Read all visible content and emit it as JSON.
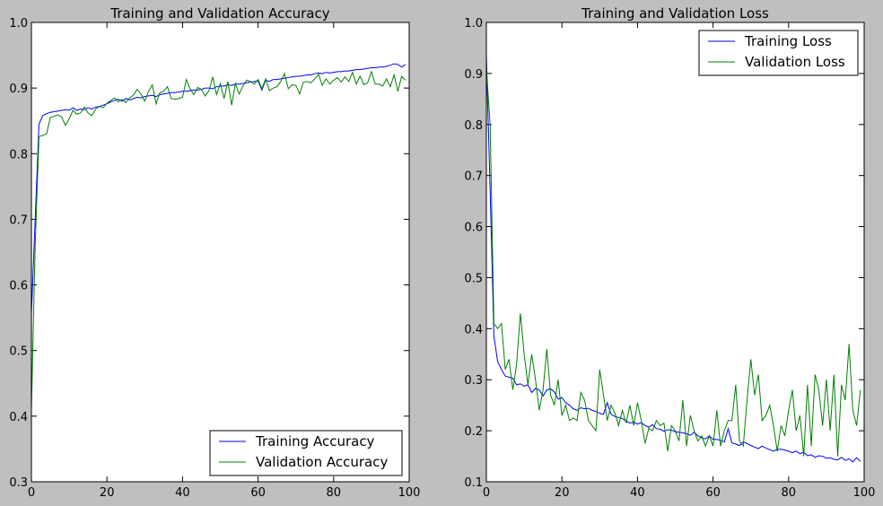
{
  "chart_data": [
    {
      "type": "line",
      "title": "Training and Validation Accuracy",
      "xlabel": "",
      "ylabel": "",
      "xlim": [
        0,
        100
      ],
      "ylim": [
        0.3,
        1.0
      ],
      "xticks": [
        "0",
        "20",
        "40",
        "60",
        "80",
        "100"
      ],
      "yticks": [
        "0.3",
        "0.4",
        "0.5",
        "0.6",
        "0.7",
        "0.8",
        "0.9",
        "1.0"
      ],
      "grid": false,
      "legend_position": "lower-right",
      "series": [
        {
          "name": "Training Accuracy",
          "color": "#0000ff",
          "x": [
            0,
            1,
            2,
            3,
            4,
            5,
            6,
            7,
            8,
            9,
            10,
            11,
            12,
            13,
            14,
            15,
            16,
            17,
            18,
            19,
            20,
            21,
            22,
            23,
            24,
            25,
            26,
            27,
            28,
            29,
            30,
            31,
            32,
            33,
            34,
            35,
            36,
            37,
            38,
            39,
            40,
            41,
            42,
            43,
            44,
            45,
            46,
            47,
            48,
            49,
            50,
            51,
            52,
            53,
            54,
            55,
            56,
            57,
            58,
            59,
            60,
            61,
            62,
            63,
            64,
            65,
            66,
            67,
            68,
            69,
            70,
            71,
            72,
            73,
            74,
            75,
            76,
            77,
            78,
            79,
            80,
            81,
            82,
            83,
            84,
            85,
            86,
            87,
            88,
            89,
            90,
            91,
            92,
            93,
            94,
            95,
            96,
            97,
            98,
            99
          ],
          "values": [
            0.555,
            0.7,
            0.845,
            0.858,
            0.861,
            0.863,
            0.864,
            0.865,
            0.866,
            0.867,
            0.866,
            0.87,
            0.866,
            0.868,
            0.867,
            0.87,
            0.868,
            0.871,
            0.872,
            0.874,
            0.876,
            0.879,
            0.881,
            0.883,
            0.88,
            0.884,
            0.882,
            0.884,
            0.886,
            0.885,
            0.887,
            0.888,
            0.889,
            0.887,
            0.89,
            0.891,
            0.892,
            0.893,
            0.893,
            0.894,
            0.895,
            0.895,
            0.896,
            0.897,
            0.897,
            0.898,
            0.9,
            0.9,
            0.899,
            0.902,
            0.903,
            0.903,
            0.905,
            0.904,
            0.906,
            0.906,
            0.907,
            0.908,
            0.909,
            0.91,
            0.911,
            0.897,
            0.912,
            0.91,
            0.913,
            0.913,
            0.914,
            0.915,
            0.916,
            0.917,
            0.918,
            0.918,
            0.919,
            0.92,
            0.92,
            0.922,
            0.923,
            0.922,
            0.924,
            0.923,
            0.924,
            0.925,
            0.925,
            0.926,
            0.926,
            0.927,
            0.928,
            0.928,
            0.929,
            0.93,
            0.931,
            0.931,
            0.932,
            0.932,
            0.933,
            0.935,
            0.937,
            0.936,
            0.932,
            0.936
          ]
        },
        {
          "name": "Validation Accuracy",
          "color": "#008000",
          "x": [
            0,
            1,
            2,
            3,
            4,
            5,
            6,
            7,
            8,
            9,
            10,
            11,
            12,
            13,
            14,
            15,
            16,
            17,
            18,
            19,
            20,
            21,
            22,
            23,
            24,
            25,
            26,
            27,
            28,
            29,
            30,
            31,
            32,
            33,
            34,
            35,
            36,
            37,
            38,
            39,
            40,
            41,
            42,
            43,
            44,
            45,
            46,
            47,
            48,
            49,
            50,
            51,
            52,
            53,
            54,
            55,
            56,
            57,
            58,
            59,
            60,
            61,
            62,
            63,
            64,
            65,
            66,
            67,
            68,
            69,
            70,
            71,
            72,
            73,
            74,
            75,
            76,
            77,
            78,
            79,
            80,
            81,
            82,
            83,
            84,
            85,
            86,
            87,
            88,
            89,
            90,
            91,
            92,
            93,
            94,
            95,
            96,
            97,
            98,
            99
          ],
          "values": [
            0.41,
            0.66,
            0.826,
            0.828,
            0.83,
            0.855,
            0.857,
            0.859,
            0.856,
            0.843,
            0.853,
            0.866,
            0.86,
            0.862,
            0.871,
            0.862,
            0.858,
            0.868,
            0.872,
            0.87,
            0.877,
            0.881,
            0.885,
            0.879,
            0.883,
            0.878,
            0.885,
            0.889,
            0.898,
            0.891,
            0.88,
            0.895,
            0.905,
            0.876,
            0.893,
            0.895,
            0.902,
            0.884,
            0.883,
            0.884,
            0.886,
            0.913,
            0.899,
            0.89,
            0.901,
            0.898,
            0.888,
            0.896,
            0.917,
            0.89,
            0.907,
            0.884,
            0.91,
            0.874,
            0.907,
            0.891,
            0.903,
            0.912,
            0.91,
            0.906,
            0.913,
            0.899,
            0.914,
            0.896,
            0.9,
            0.902,
            0.91,
            0.922,
            0.899,
            0.905,
            0.904,
            0.891,
            0.909,
            0.91,
            0.908,
            0.914,
            0.921,
            0.904,
            0.914,
            0.906,
            0.912,
            0.916,
            0.909,
            0.917,
            0.91,
            0.924,
            0.906,
            0.918,
            0.905,
            0.908,
            0.925,
            0.906,
            0.906,
            0.903,
            0.914,
            0.902,
            0.92,
            0.895,
            0.918,
            0.912
          ]
        }
      ]
    },
    {
      "type": "line",
      "title": "Training and Validation Loss",
      "xlabel": "",
      "ylabel": "",
      "xlim": [
        0,
        100
      ],
      "ylim": [
        0.1,
        1.0
      ],
      "xticks": [
        "0",
        "20",
        "40",
        "60",
        "80",
        "100"
      ],
      "yticks": [
        "0.1",
        "0.2",
        "0.3",
        "0.4",
        "0.5",
        "0.6",
        "0.7",
        "0.8",
        "0.9",
        "1.0"
      ],
      "grid": false,
      "legend_position": "upper-right",
      "series": [
        {
          "name": "Training Loss",
          "color": "#0000ff",
          "x": [
            0,
            1,
            2,
            3,
            4,
            5,
            6,
            7,
            8,
            9,
            10,
            11,
            12,
            13,
            14,
            15,
            16,
            17,
            18,
            19,
            20,
            21,
            22,
            23,
            24,
            25,
            26,
            27,
            28,
            29,
            30,
            31,
            32,
            33,
            34,
            35,
            36,
            37,
            38,
            39,
            40,
            41,
            42,
            43,
            44,
            45,
            46,
            47,
            48,
            49,
            50,
            51,
            52,
            53,
            54,
            55,
            56,
            57,
            58,
            59,
            60,
            61,
            62,
            63,
            64,
            65,
            66,
            67,
            68,
            69,
            70,
            71,
            72,
            73,
            74,
            75,
            76,
            77,
            78,
            79,
            80,
            81,
            82,
            83,
            84,
            85,
            86,
            87,
            88,
            89,
            90,
            91,
            92,
            93,
            94,
            95,
            96,
            97,
            98,
            99
          ],
          "values": [
            0.935,
            0.67,
            0.385,
            0.335,
            0.32,
            0.307,
            0.305,
            0.303,
            0.29,
            0.292,
            0.287,
            0.29,
            0.275,
            0.283,
            0.28,
            0.268,
            0.28,
            0.282,
            0.276,
            0.262,
            0.265,
            0.255,
            0.25,
            0.243,
            0.24,
            0.245,
            0.243,
            0.244,
            0.24,
            0.238,
            0.234,
            0.232,
            0.255,
            0.232,
            0.228,
            0.226,
            0.224,
            0.219,
            0.215,
            0.217,
            0.213,
            0.216,
            0.21,
            0.207,
            0.212,
            0.204,
            0.203,
            0.199,
            0.202,
            0.201,
            0.198,
            0.197,
            0.196,
            0.194,
            0.191,
            0.197,
            0.19,
            0.186,
            0.184,
            0.19,
            0.183,
            0.183,
            0.181,
            0.178,
            0.204,
            0.176,
            0.174,
            0.171,
            0.178,
            0.175,
            0.171,
            0.168,
            0.165,
            0.17,
            0.166,
            0.163,
            0.16,
            0.163,
            0.164,
            0.162,
            0.16,
            0.157,
            0.16,
            0.155,
            0.158,
            0.151,
            0.153,
            0.148,
            0.151,
            0.15,
            0.146,
            0.147,
            0.144,
            0.143,
            0.148,
            0.142,
            0.145,
            0.139,
            0.147,
            0.14
          ]
        },
        {
          "name": "Validation Loss",
          "color": "#008000",
          "x": [
            0,
            1,
            2,
            3,
            4,
            5,
            6,
            7,
            8,
            9,
            10,
            11,
            12,
            13,
            14,
            15,
            16,
            17,
            18,
            19,
            20,
            21,
            22,
            23,
            24,
            25,
            26,
            27,
            28,
            29,
            30,
            31,
            32,
            33,
            34,
            35,
            36,
            37,
            38,
            39,
            40,
            41,
            42,
            43,
            44,
            45,
            46,
            47,
            48,
            49,
            50,
            51,
            52,
            53,
            54,
            55,
            56,
            57,
            58,
            59,
            60,
            61,
            62,
            63,
            64,
            65,
            66,
            67,
            68,
            69,
            70,
            71,
            72,
            73,
            74,
            75,
            76,
            77,
            78,
            79,
            80,
            81,
            82,
            83,
            84,
            85,
            86,
            87,
            88,
            89,
            90,
            91,
            92,
            93,
            94,
            95,
            96,
            97,
            98,
            99
          ],
          "values": [
            0.91,
            0.8,
            0.41,
            0.4,
            0.41,
            0.32,
            0.34,
            0.28,
            0.33,
            0.43,
            0.35,
            0.29,
            0.35,
            0.3,
            0.24,
            0.28,
            0.36,
            0.27,
            0.25,
            0.3,
            0.23,
            0.25,
            0.22,
            0.225,
            0.22,
            0.275,
            0.26,
            0.22,
            0.21,
            0.2,
            0.32,
            0.27,
            0.22,
            0.25,
            0.235,
            0.21,
            0.24,
            0.215,
            0.25,
            0.21,
            0.255,
            0.22,
            0.175,
            0.205,
            0.2,
            0.22,
            0.21,
            0.215,
            0.16,
            0.21,
            0.2,
            0.18,
            0.26,
            0.17,
            0.23,
            0.2,
            0.18,
            0.19,
            0.17,
            0.19,
            0.17,
            0.24,
            0.17,
            0.2,
            0.22,
            0.22,
            0.29,
            0.18,
            0.17,
            0.26,
            0.34,
            0.27,
            0.31,
            0.22,
            0.23,
            0.25,
            0.21,
            0.16,
            0.21,
            0.19,
            0.24,
            0.28,
            0.2,
            0.23,
            0.15,
            0.29,
            0.17,
            0.31,
            0.28,
            0.21,
            0.3,
            0.2,
            0.31,
            0.15,
            0.29,
            0.26,
            0.37,
            0.24,
            0.21,
            0.28
          ]
        }
      ]
    }
  ]
}
